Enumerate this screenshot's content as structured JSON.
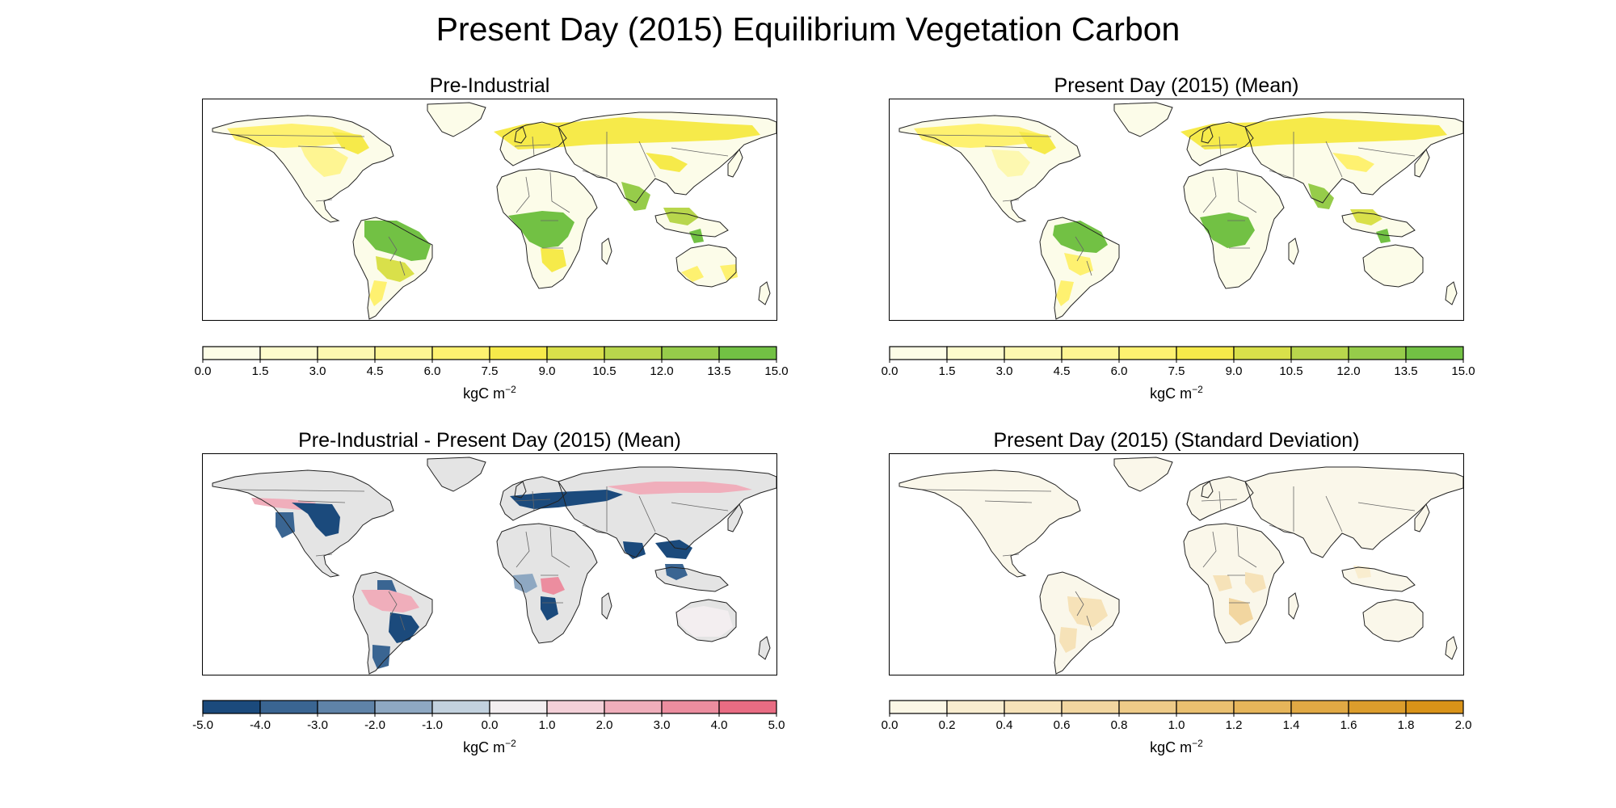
{
  "title": "Present Day (2015) Equilibrium Vegetation Carbon",
  "unit": "kgC m",
  "unit_exponent": "−2",
  "panels": [
    {
      "title": "Pre-Industrial",
      "palette": "yellow-green",
      "ticks": [
        "0.0",
        "1.5",
        "3.0",
        "4.5",
        "6.0",
        "7.5",
        "9.0",
        "10.5",
        "12.0",
        "13.5",
        "15.0"
      ],
      "colors": [
        "#fdfde6",
        "#fdfbcc",
        "#fdf8b0",
        "#fef592",
        "#fef170",
        "#f6ea4a",
        "#d9e04a",
        "#b8d64c",
        "#96cc4a",
        "#72c144"
      ]
    },
    {
      "title": "Present Day (2015) (Mean)",
      "palette": "yellow-green",
      "ticks": [
        "0.0",
        "1.5",
        "3.0",
        "4.5",
        "6.0",
        "7.5",
        "9.0",
        "10.5",
        "12.0",
        "13.5",
        "15.0"
      ],
      "colors": [
        "#fdfde6",
        "#fdfbcc",
        "#fdf8b0",
        "#fef592",
        "#fef170",
        "#f6ea4a",
        "#d9e04a",
        "#b8d64c",
        "#96cc4a",
        "#72c144"
      ]
    },
    {
      "title": "Pre-Industrial - Present Day (2015) (Mean)",
      "palette": "blue-red",
      "ticks": [
        "-5.0",
        "-4.0",
        "-3.0",
        "-2.0",
        "-1.0",
        "0.0",
        "1.0",
        "2.0",
        "3.0",
        "4.0",
        "5.0"
      ],
      "colors": [
        "#1b4a7c",
        "#3a6592",
        "#5f83a8",
        "#8ea8c2",
        "#c2d1de",
        "#f3eef0",
        "#f4d0d8",
        "#f0aebb",
        "#ec8d9f",
        "#e96c83"
      ]
    },
    {
      "title": "Present Day (2015) (Standard Deviation)",
      "palette": "orange",
      "ticks": [
        "0.0",
        "0.2",
        "0.4",
        "0.6",
        "0.8",
        "1.0",
        "1.2",
        "1.4",
        "1.6",
        "1.8",
        "2.0"
      ],
      "colors": [
        "#fcf7e6",
        "#f9edcf",
        "#f6e2b8",
        "#f2d6a0",
        "#eecb88",
        "#eac070",
        "#e6b55a",
        "#e1a944",
        "#dc9d2c",
        "#d99318"
      ]
    }
  ]
}
